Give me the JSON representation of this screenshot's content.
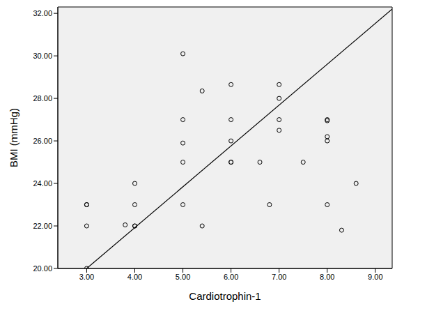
{
  "chart_data": {
    "type": "scatter",
    "x_label": "Cardiotrophin-1",
    "y_label": "BMI (mmHg)",
    "x": [
      3,
      3,
      3,
      3,
      3.8,
      4,
      4,
      4,
      4,
      5,
      5,
      5,
      5,
      5,
      5.4,
      5.4,
      6,
      6,
      6,
      6,
      6,
      6.6,
      6.8,
      7,
      7,
      7,
      7,
      7.5,
      8,
      8,
      8,
      8,
      8,
      8.3,
      8.6
    ],
    "values": [
      23,
      23,
      22,
      20,
      22.05,
      24,
      23,
      22,
      22,
      30.1,
      27,
      25.9,
      25,
      23,
      28.35,
      22,
      28.65,
      27,
      26,
      25,
      25,
      25,
      23,
      28.65,
      28,
      27,
      26.5,
      25,
      27,
      26.95,
      26.2,
      26,
      23,
      21.8,
      24
    ],
    "color": "#000000",
    "marker": "hollow_circle",
    "fit_line": {
      "x": [
        3,
        9.35
      ],
      "y": [
        20,
        32.2
      ],
      "color": "#000000"
    },
    "xlim": [
      2.4,
      9.35
    ],
    "ylim": [
      20,
      32.3
    ],
    "xticks": [
      {
        "value": 3,
        "label": "3.00"
      },
      {
        "value": 4,
        "label": "4.00"
      },
      {
        "value": 5,
        "label": "5.00"
      },
      {
        "value": 6,
        "label": "6.00"
      },
      {
        "value": 7,
        "label": "7.00"
      },
      {
        "value": 8,
        "label": "8.00"
      },
      {
        "value": 9,
        "label": "9.00"
      }
    ],
    "yticks": [
      {
        "value": 20,
        "label": "20.00"
      },
      {
        "value": 22,
        "label": "22.00"
      },
      {
        "value": 24,
        "label": "24.00"
      },
      {
        "value": 26,
        "label": "26.00"
      },
      {
        "value": 28,
        "label": "28.00"
      },
      {
        "value": 30,
        "label": "30.00"
      },
      {
        "value": 32,
        "label": "32.00"
      }
    ],
    "grid": false
  }
}
